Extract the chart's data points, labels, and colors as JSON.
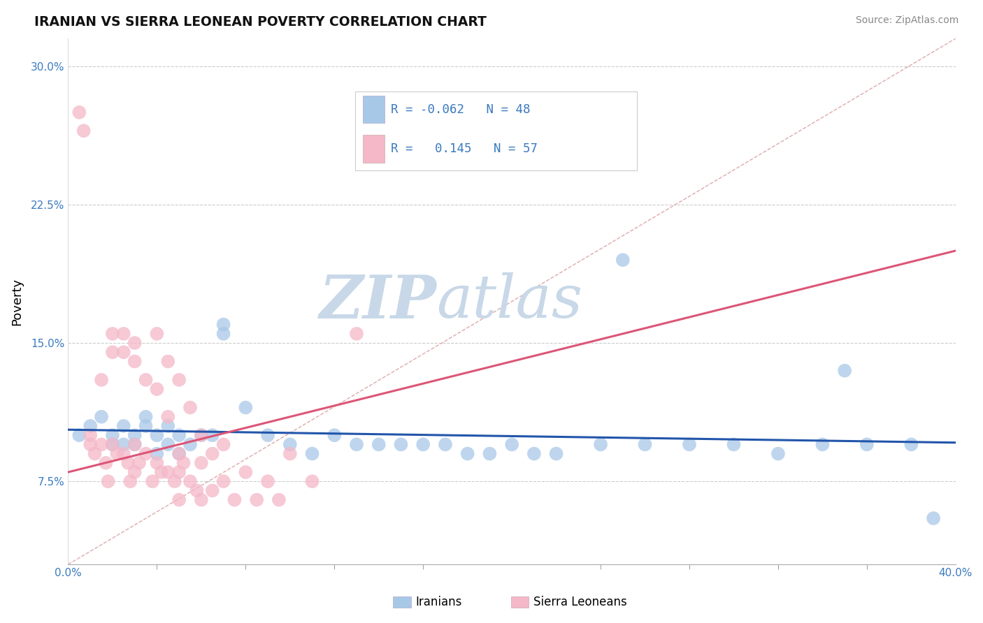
{
  "title": "IRANIAN VS SIERRA LEONEAN POVERTY CORRELATION CHART",
  "source": "Source: ZipAtlas.com",
  "ylabel": "Poverty",
  "xmin": 0.0,
  "xmax": 0.4,
  "ymin": 0.03,
  "ymax": 0.315,
  "legend_line1": "R = -0.062   N = 48",
  "legend_line2": "R =   0.145   N = 57",
  "color_iranian": "#a8c8e8",
  "color_sierra": "#f4b8c8",
  "line_iranian": "#2255aa",
  "line_sierra": "#dd5577",
  "dashed_color": "#ddaaaa",
  "watermark_zip": "ZIP",
  "watermark_atlas": "atlas",
  "watermark_color": "#c8d8e8",
  "iranian_x": [
    0.005,
    0.01,
    0.015,
    0.02,
    0.02,
    0.025,
    0.025,
    0.03,
    0.03,
    0.035,
    0.035,
    0.04,
    0.04,
    0.045,
    0.045,
    0.05,
    0.05,
    0.055,
    0.06,
    0.065,
    0.07,
    0.08,
    0.09,
    0.1,
    0.11,
    0.12,
    0.13,
    0.14,
    0.15,
    0.16,
    0.17,
    0.18,
    0.19,
    0.2,
    0.21,
    0.22,
    0.24,
    0.26,
    0.28,
    0.3,
    0.32,
    0.34,
    0.35,
    0.36,
    0.38,
    0.39,
    0.25,
    0.07
  ],
  "iranian_y": [
    0.1,
    0.105,
    0.11,
    0.095,
    0.1,
    0.105,
    0.095,
    0.1,
    0.095,
    0.105,
    0.11,
    0.1,
    0.09,
    0.105,
    0.095,
    0.1,
    0.09,
    0.095,
    0.1,
    0.1,
    0.155,
    0.115,
    0.1,
    0.095,
    0.09,
    0.1,
    0.095,
    0.095,
    0.095,
    0.095,
    0.095,
    0.09,
    0.09,
    0.095,
    0.09,
    0.09,
    0.095,
    0.095,
    0.095,
    0.095,
    0.09,
    0.095,
    0.135,
    0.095,
    0.095,
    0.055,
    0.195,
    0.16
  ],
  "sierra_x": [
    0.005,
    0.007,
    0.01,
    0.01,
    0.012,
    0.015,
    0.015,
    0.017,
    0.018,
    0.02,
    0.02,
    0.02,
    0.022,
    0.025,
    0.025,
    0.025,
    0.027,
    0.028,
    0.03,
    0.03,
    0.03,
    0.03,
    0.032,
    0.035,
    0.035,
    0.038,
    0.04,
    0.04,
    0.04,
    0.042,
    0.045,
    0.045,
    0.045,
    0.048,
    0.05,
    0.05,
    0.05,
    0.05,
    0.052,
    0.055,
    0.055,
    0.058,
    0.06,
    0.06,
    0.06,
    0.065,
    0.065,
    0.07,
    0.07,
    0.075,
    0.08,
    0.085,
    0.09,
    0.095,
    0.1,
    0.11,
    0.13
  ],
  "sierra_y": [
    0.275,
    0.265,
    0.1,
    0.095,
    0.09,
    0.13,
    0.095,
    0.085,
    0.075,
    0.155,
    0.145,
    0.095,
    0.09,
    0.155,
    0.145,
    0.09,
    0.085,
    0.075,
    0.15,
    0.14,
    0.095,
    0.08,
    0.085,
    0.13,
    0.09,
    0.075,
    0.155,
    0.125,
    0.085,
    0.08,
    0.14,
    0.11,
    0.08,
    0.075,
    0.13,
    0.09,
    0.08,
    0.065,
    0.085,
    0.115,
    0.075,
    0.07,
    0.1,
    0.085,
    0.065,
    0.09,
    0.07,
    0.095,
    0.075,
    0.065,
    0.08,
    0.065,
    0.075,
    0.065,
    0.09,
    0.075,
    0.155
  ],
  "ytick_vals": [
    0.075,
    0.15,
    0.225,
    0.3
  ],
  "ytick_labels": [
    "7.5%",
    "15.0%",
    "22.5%",
    "30.0%"
  ],
  "xtick_positions": [
    0.0,
    0.1,
    0.2,
    0.3,
    0.4
  ]
}
